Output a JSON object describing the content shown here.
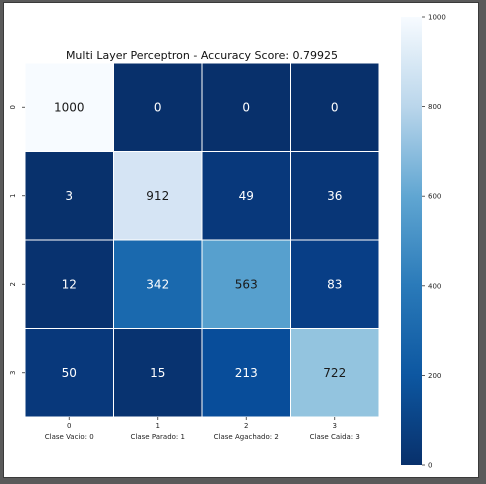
{
  "chart_data": {
    "type": "heatmap",
    "title": "Multi Layer Perceptron - Accuracy Score: 0.79925",
    "x_categories": [
      "0",
      "1",
      "2",
      "3"
    ],
    "x_labels": [
      "Clase Vacio: 0",
      "Clase Parado: 1",
      "Clase Agachado: 2",
      "Clase Caida: 3"
    ],
    "y_categories": [
      "0",
      "1",
      "2",
      "3"
    ],
    "values": [
      [
        1000,
        0,
        0,
        0
      ],
      [
        3,
        912,
        49,
        36
      ],
      [
        12,
        342,
        563,
        83
      ],
      [
        50,
        15,
        213,
        722
      ]
    ],
    "colormap": "Blues_r",
    "vmin": 0,
    "vmax": 1000,
    "colorbar_ticks": [
      0,
      200,
      400,
      600,
      800,
      1000
    ],
    "colorbar_labels": [
      "0",
      "200",
      "400",
      "600",
      "800",
      "1000"
    ]
  }
}
